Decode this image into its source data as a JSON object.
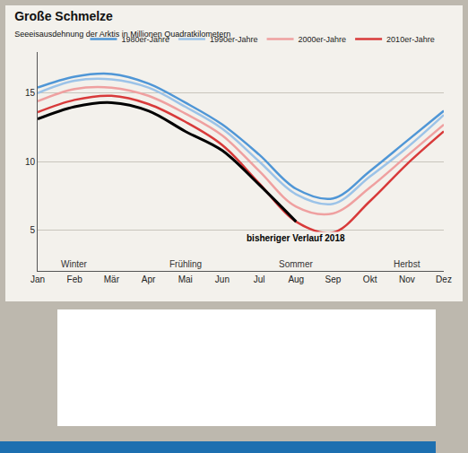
{
  "chart_data": {
    "type": "line",
    "title": "Große Schmelze",
    "subtitle": "Seeeisausdehnung der Arktis in Millionen Quadratkilometern",
    "categories": [
      "Jan",
      "Feb",
      "Mär",
      "Apr",
      "Mai",
      "Jun",
      "Jul",
      "Aug",
      "Sep",
      "Okt",
      "Nov",
      "Dez"
    ],
    "series": [
      {
        "name": "1980er-Jahre",
        "color": "#4f96d6",
        "values": [
          15.4,
          16.2,
          16.4,
          15.7,
          14.3,
          12.7,
          10.5,
          8.0,
          7.3,
          9.3,
          11.5,
          13.7
        ]
      },
      {
        "name": "1990er-Jahre",
        "color": "#9cc3e8",
        "values": [
          15.0,
          15.9,
          16.0,
          15.4,
          14.0,
          12.4,
          10.0,
          7.6,
          6.9,
          8.9,
          11.0,
          13.4
        ]
      },
      {
        "name": "2000er-Jahre",
        "color": "#efa0a0",
        "values": [
          14.4,
          15.3,
          15.4,
          14.8,
          13.5,
          11.9,
          9.3,
          6.7,
          6.2,
          8.1,
          10.4,
          12.7
        ]
      },
      {
        "name": "2010er-Jahre",
        "color": "#d83a3a",
        "values": [
          13.6,
          14.5,
          14.8,
          14.2,
          12.9,
          11.2,
          8.4,
          5.6,
          4.8,
          7.1,
          9.8,
          12.2
        ]
      },
      {
        "name": "bisheriger Verlauf 2018",
        "color": "#000000",
        "values": [
          13.1,
          14.0,
          14.3,
          13.7,
          12.2,
          10.8,
          8.3,
          5.6,
          null,
          null,
          null,
          null
        ]
      }
    ],
    "annotations": [
      {
        "text": "Winter",
        "category": "Feb"
      },
      {
        "text": "Frühling",
        "category": "Mai"
      },
      {
        "text": "Sommer",
        "category": "Aug"
      },
      {
        "text": "Herbst",
        "category": "Nov"
      }
    ],
    "ylim": [
      2,
      18
    ],
    "yticks": [
      5,
      10,
      15
    ],
    "grid": true,
    "legend": "top right"
  }
}
